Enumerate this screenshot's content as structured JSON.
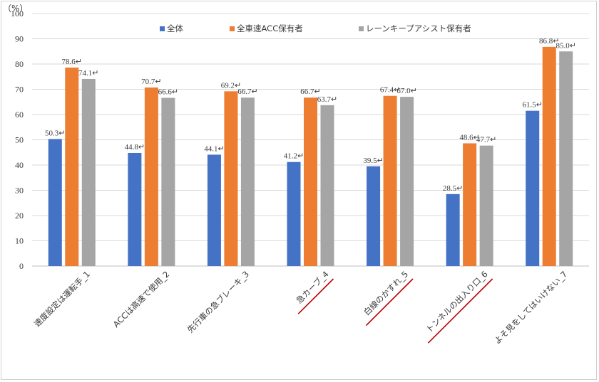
{
  "chart_data": {
    "type": "bar",
    "ylabel": "（%）",
    "ylim": [
      0,
      100
    ],
    "ytick_step": 10,
    "grid": true,
    "legend_position": "top-center",
    "categories": [
      "速度設定は運転手_1",
      "ACCは高速で使用_2",
      "先行車の急ブレーキ_3",
      "急カーブ_4",
      "白線のかすれ_5",
      "トンネルの出入り口_6",
      "よそ見をしてはいけない_7"
    ],
    "underlined_categories": [
      "急カーブ_4",
      "白線のかすれ_5",
      "トンネルの出入り口_6"
    ],
    "series": [
      {
        "name": "全体",
        "color": "#4472c4",
        "values": [
          50.3,
          44.8,
          44.1,
          41.2,
          39.5,
          28.5,
          61.5
        ]
      },
      {
        "name": "全車速ACC保有者",
        "color": "#ed7d31",
        "values": [
          78.6,
          70.7,
          69.2,
          66.7,
          67.4,
          48.6,
          86.8
        ]
      },
      {
        "name": "レーンキープアシスト保有者",
        "color": "#a5a5a5",
        "values": [
          74.1,
          66.6,
          66.7,
          63.7,
          67.0,
          47.7,
          85.0
        ]
      }
    ],
    "label_mark": "↵",
    "underline_color": "#c00000"
  }
}
